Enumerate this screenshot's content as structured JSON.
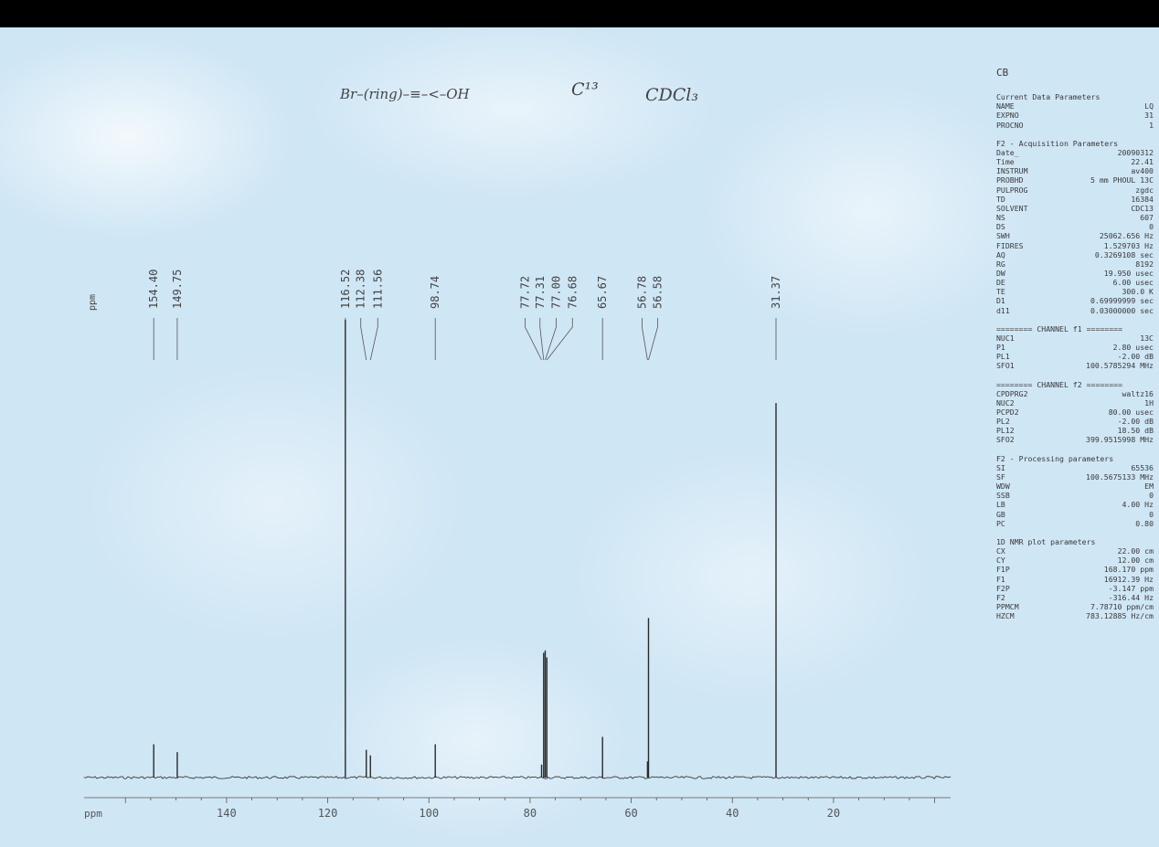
{
  "header": {
    "structure_sketch": "Br–(ring)–≡–<–OH",
    "nucleus_note": "C¹³",
    "solvent_note": "CDCl₃"
  },
  "chart_data": {
    "type": "line",
    "title": "",
    "xlabel": "ppm",
    "ylabel": "",
    "xlim": [
      -3.147,
      168.17
    ],
    "x_reversed": true,
    "ylim": [
      0,
      1
    ],
    "grid": false,
    "x_ticks": [
      140,
      120,
      100,
      80,
      60,
      40,
      20
    ],
    "peak_axis_label": "ppm",
    "series": [
      {
        "peaks": [
          {
            "ppm": 154.4,
            "height": 0.072,
            "label": "154.40"
          },
          {
            "ppm": 149.75,
            "height": 0.055,
            "label": "149.75"
          },
          {
            "ppm": 116.52,
            "height": 0.99,
            "label": "116.52"
          },
          {
            "ppm": 112.38,
            "height": 0.06,
            "label": "112.38"
          },
          {
            "ppm": 111.56,
            "height": 0.048,
            "label": "111.56"
          },
          {
            "ppm": 98.74,
            "height": 0.072,
            "label": "98.74"
          },
          {
            "ppm": 77.72,
            "height": 0.028,
            "label": "77.72"
          },
          {
            "ppm": 77.31,
            "height": 0.27,
            "label": "77.31"
          },
          {
            "ppm": 77.0,
            "height": 0.275,
            "label": "77.00"
          },
          {
            "ppm": 76.68,
            "height": 0.26,
            "label": "76.68"
          },
          {
            "ppm": 65.67,
            "height": 0.088,
            "label": "65.67"
          },
          {
            "ppm": 56.78,
            "height": 0.035,
            "label": "56.78"
          },
          {
            "ppm": 56.58,
            "height": 0.345,
            "label": "56.58"
          },
          {
            "ppm": 31.37,
            "height": 0.81,
            "label": "31.37"
          }
        ]
      }
    ]
  },
  "params": {
    "title": "CB",
    "groups": [
      {
        "title": "Current Data Parameters",
        "rows": [
          {
            "k": "NAME",
            "v": "LQ"
          },
          {
            "k": "EXPNO",
            "v": "31"
          },
          {
            "k": "PROCNO",
            "v": "1"
          }
        ]
      },
      {
        "title": "F2 - Acquisition Parameters",
        "rows": [
          {
            "k": "Date_",
            "v": "20090312"
          },
          {
            "k": "Time",
            "v": "22.41"
          },
          {
            "k": "INSTRUM",
            "v": "av400"
          },
          {
            "k": "PROBHD",
            "v": "5 mm PHOUL 13C"
          },
          {
            "k": "PULPROG",
            "v": "zgdc"
          },
          {
            "k": "TD",
            "v": "16384"
          },
          {
            "k": "SOLVENT",
            "v": "CDC13"
          },
          {
            "k": "NS",
            "v": "607"
          },
          {
            "k": "DS",
            "v": "0"
          },
          {
            "k": "SWH",
            "v": "25062.656 Hz"
          },
          {
            "k": "FIDRES",
            "v": "1.529703 Hz"
          },
          {
            "k": "AQ",
            "v": "0.3269108 sec"
          },
          {
            "k": "RG",
            "v": "8192"
          },
          {
            "k": "DW",
            "v": "19.950 usec"
          },
          {
            "k": "DE",
            "v": "6.00 usec"
          },
          {
            "k": "TE",
            "v": "300.0 K"
          },
          {
            "k": "D1",
            "v": "0.69999999 sec"
          },
          {
            "k": "d11",
            "v": "0.03000000 sec"
          }
        ]
      },
      {
        "title": "======== CHANNEL f1 ========",
        "rows": [
          {
            "k": "NUC1",
            "v": "13C"
          },
          {
            "k": "P1",
            "v": "2.80 usec"
          },
          {
            "k": "PL1",
            "v": "-2.00 dB"
          },
          {
            "k": "SFO1",
            "v": "100.5785294 MHz"
          }
        ]
      },
      {
        "title": "======== CHANNEL f2 ========",
        "rows": [
          {
            "k": "CPDPRG2",
            "v": "waltz16"
          },
          {
            "k": "NUC2",
            "v": "1H"
          },
          {
            "k": "PCPD2",
            "v": "80.00 usec"
          },
          {
            "k": "PL2",
            "v": "-2.00 dB"
          },
          {
            "k": "PL12",
            "v": "18.50 dB"
          },
          {
            "k": "SFO2",
            "v": "399.9515998 MHz"
          }
        ]
      },
      {
        "title": "F2 - Processing parameters",
        "rows": [
          {
            "k": "SI",
            "v": "65536"
          },
          {
            "k": "SF",
            "v": "100.5675133 MHz"
          },
          {
            "k": "WDW",
            "v": "EM"
          },
          {
            "k": "SSB",
            "v": "0"
          },
          {
            "k": "LB",
            "v": "4.00 Hz"
          },
          {
            "k": "GB",
            "v": "0"
          },
          {
            "k": "PC",
            "v": "0.80"
          }
        ]
      },
      {
        "title": "1D NMR plot parameters",
        "rows": [
          {
            "k": "CX",
            "v": "22.00 cm"
          },
          {
            "k": "CY",
            "v": "12.00 cm"
          },
          {
            "k": "F1P",
            "v": "168.170 ppm"
          },
          {
            "k": "F1",
            "v": "16912.39 Hz"
          },
          {
            "k": "F2P",
            "v": "-3.147 ppm"
          },
          {
            "k": "F2",
            "v": "-316.44 Hz"
          },
          {
            "k": "PPMCM",
            "v": "7.78710 ppm/cm"
          },
          {
            "k": "HZCM",
            "v": "783.12885 Hz/cm"
          }
        ]
      }
    ]
  }
}
